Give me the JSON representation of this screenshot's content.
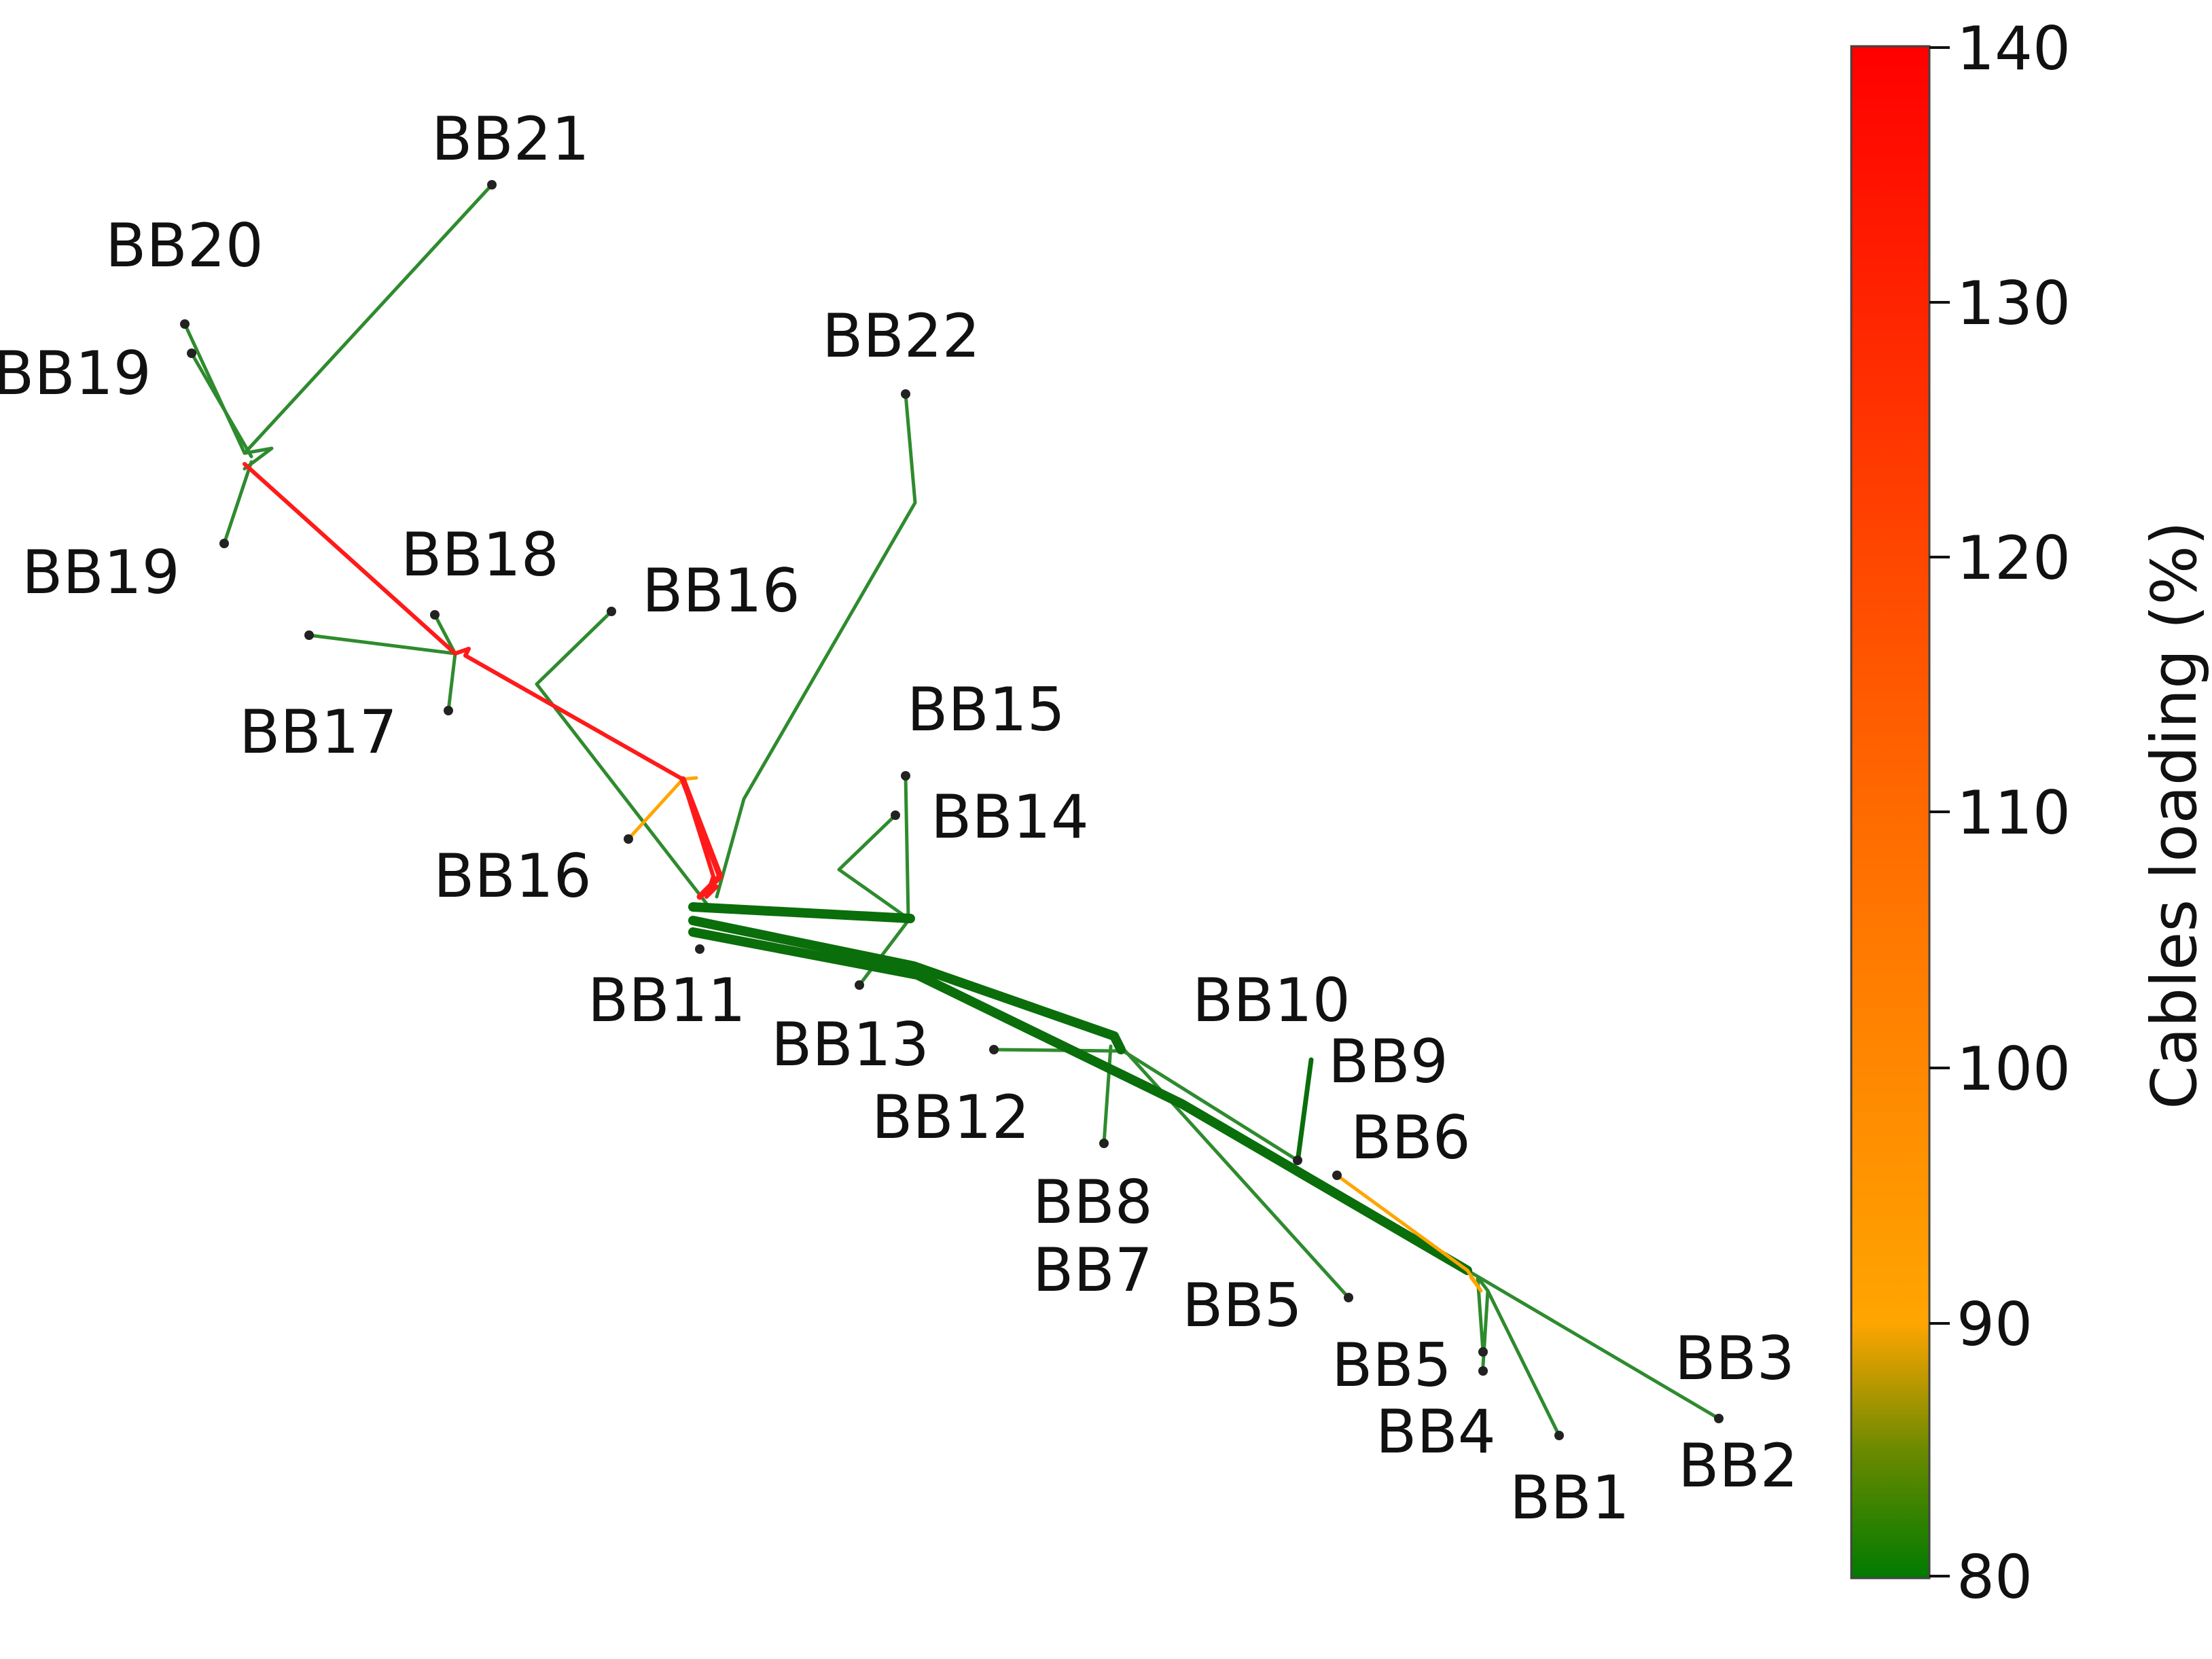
{
  "labels": [
    "BB21",
    "BB20",
    "BB19",
    "BB19",
    "BB18",
    "BB16",
    "BB22",
    "BB17",
    "BB15",
    "BB14",
    "BB16",
    "BB11",
    "BB13",
    "BB10",
    "BB9",
    "BB12",
    "BB6",
    "BB8",
    "BB7",
    "BB5",
    "BB5",
    "BB3",
    "BB4",
    "BB2",
    "BB1"
  ],
  "colorbar": {
    "title": "Cables loading (%)",
    "ticks": [
      "140",
      "130",
      "120",
      "110",
      "100",
      "90",
      "80"
    ],
    "min": 80,
    "max": 140,
    "stops": [
      {
        "value": 80,
        "color": "#007a00"
      },
      {
        "value": 85,
        "color": "#6b8a00"
      },
      {
        "value": 90,
        "color": "#ffa500"
      },
      {
        "value": 110,
        "color": "#ff6a00"
      },
      {
        "value": 140,
        "color": "#ff0000"
      }
    ]
  },
  "colors": {
    "green": "#2e8b2e",
    "dark_green": "#0a6e0a",
    "orange": "#ffa500",
    "red": "#ff1a1a",
    "node": "#222222"
  }
}
